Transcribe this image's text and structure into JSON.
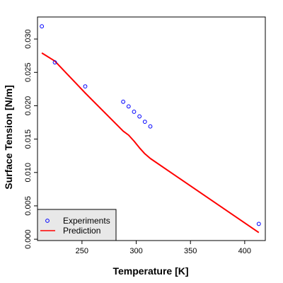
{
  "chart_data": {
    "type": "scatter",
    "xlabel": "Temperature [K]",
    "ylabel": "Surface Tension [N/m]",
    "xlim": [
      209,
      419
    ],
    "ylim": [
      -0.0002,
      0.0333
    ],
    "x_ticks": [
      250,
      300,
      350,
      400
    ],
    "x_tick_labels": [
      "250",
      "300",
      "350",
      "400"
    ],
    "y_ticks": [
      0.0,
      0.005,
      0.01,
      0.015,
      0.02,
      0.025,
      0.03
    ],
    "y_tick_labels": [
      "0.000",
      "0.005",
      "0.010",
      "0.015",
      "0.020",
      "0.025",
      "0.030"
    ],
    "grid": false,
    "legend_position": "bottom-left",
    "series": [
      {
        "name": "Experiments",
        "kind": "points",
        "color": "#0000ff",
        "x": [
          213,
          225,
          253,
          288,
          293,
          298,
          303,
          308,
          313,
          413
        ],
        "y": [
          0.0319,
          0.0265,
          0.0229,
          0.0206,
          0.0199,
          0.0191,
          0.0184,
          0.0176,
          0.0169,
          0.0023
        ]
      },
      {
        "name": "Prediction",
        "kind": "line",
        "color": "#ff0000",
        "x": [
          213,
          225,
          253,
          288,
          293,
          298,
          303,
          308,
          313,
          413
        ],
        "y": [
          0.0279,
          0.0267,
          0.0219,
          0.0162,
          0.0156,
          0.0147,
          0.0137,
          0.0128,
          0.0121,
          0.001
        ]
      }
    ]
  }
}
